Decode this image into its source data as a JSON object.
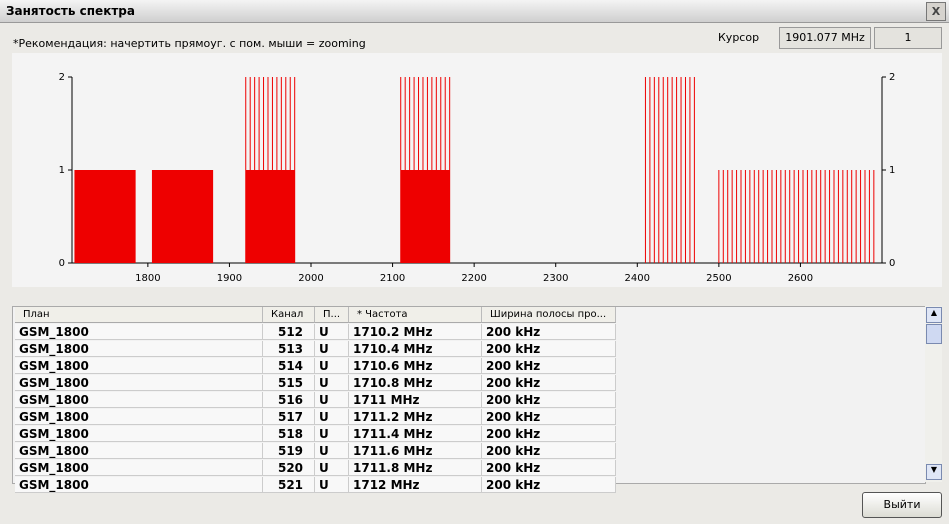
{
  "window": {
    "title": "Занятость спектра",
    "close": "X"
  },
  "hint": "*Рекомендация: начертить прямоуг. с пом. мыши = zooming",
  "cursor": {
    "label": "Курсор",
    "value": "1901.077 MHz",
    "count": "1"
  },
  "chart": {
    "type": "spectrum",
    "color": "#ee0000",
    "xlim": [
      1707,
      2700
    ],
    "xticks": [
      1800,
      1900,
      2000,
      2100,
      2200,
      2300,
      2400,
      2500,
      2600
    ],
    "ylim": [
      0,
      2
    ],
    "yticks": [
      0,
      1,
      2
    ],
    "blocks": [
      {
        "start": 1710,
        "end": 1785,
        "value": 1,
        "fill": "solid"
      },
      {
        "start": 1805,
        "end": 1880,
        "value": 1,
        "fill": "solid"
      },
      {
        "start": 1920,
        "end": 1980,
        "value": 2,
        "fill": "lines"
      },
      {
        "start": 1920,
        "end": 1980,
        "value": 1,
        "fill": "solid"
      },
      {
        "start": 2110,
        "end": 2170,
        "value": 2,
        "fill": "lines"
      },
      {
        "start": 2110,
        "end": 2170,
        "value": 1,
        "fill": "solid"
      },
      {
        "start": 2410,
        "end": 2470,
        "value": 2,
        "fill": "lines"
      },
      {
        "start": 2500,
        "end": 2690,
        "value": 1,
        "fill": "lines"
      }
    ]
  },
  "table": {
    "columns": [
      "План",
      "Канал",
      "П...",
      "* Частота",
      "Ширина полосы про..."
    ],
    "rows": [
      [
        "GSM_1800",
        "512",
        "U",
        "1710.2 MHz",
        "200 kHz"
      ],
      [
        "GSM_1800",
        "513",
        "U",
        "1710.4 MHz",
        "200 kHz"
      ],
      [
        "GSM_1800",
        "514",
        "U",
        "1710.6 MHz",
        "200 kHz"
      ],
      [
        "GSM_1800",
        "515",
        "U",
        "1710.8 MHz",
        "200 kHz"
      ],
      [
        "GSM_1800",
        "516",
        "U",
        "1711 MHz",
        "200 kHz"
      ],
      [
        "GSM_1800",
        "517",
        "U",
        "1711.2 MHz",
        "200 kHz"
      ],
      [
        "GSM_1800",
        "518",
        "U",
        "1711.4 MHz",
        "200 kHz"
      ],
      [
        "GSM_1800",
        "519",
        "U",
        "1711.6 MHz",
        "200 kHz"
      ],
      [
        "GSM_1800",
        "520",
        "U",
        "1711.8 MHz",
        "200 kHz"
      ],
      [
        "GSM_1800",
        "521",
        "U",
        "1712 MHz",
        "200 kHz"
      ]
    ]
  },
  "button": "Выйти"
}
